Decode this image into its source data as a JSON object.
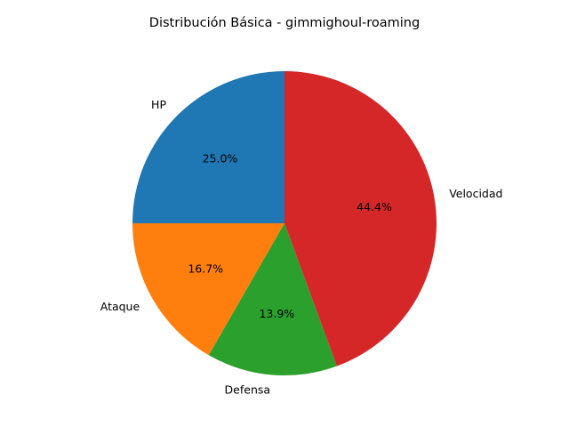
{
  "chart_data": {
    "type": "pie",
    "title": "Distribución Básica - gimmighoul-roaming",
    "labels": [
      "HP",
      "Ataque",
      "Defensa",
      "Velocidad"
    ],
    "values": [
      25.0,
      16.7,
      13.9,
      44.4
    ],
    "percent_labels": [
      "25.0%",
      "16.7%",
      "13.9%",
      "44.4%"
    ],
    "colors": [
      "#1f77b4",
      "#ff7f0e",
      "#2ca02c",
      "#d62728"
    ],
    "start_angle_deg": 90,
    "direction": "counterclockwise"
  }
}
